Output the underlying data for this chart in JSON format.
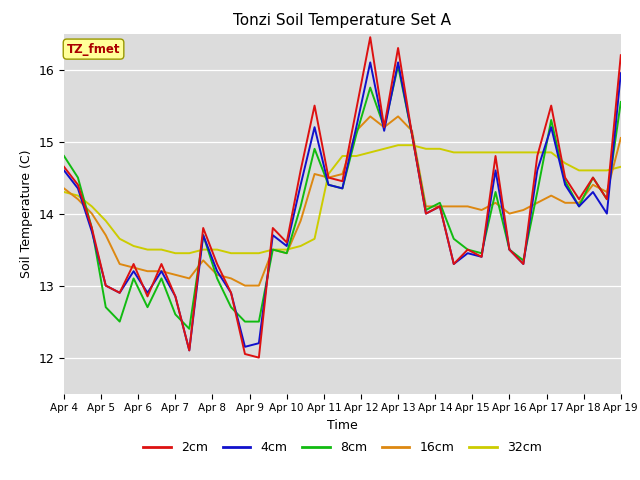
{
  "title": "Tonzi Soil Temperature Set A",
  "xlabel": "Time",
  "ylabel": "Soil Temperature (C)",
  "ylim": [
    11.5,
    16.5
  ],
  "xtick_labels": [
    "Apr 4",
    "Apr 5",
    "Apr 6",
    "Apr 7",
    "Apr 8",
    "Apr 9",
    "Apr 10",
    "Apr 11",
    "Apr 12",
    "Apr 13",
    "Apr 14",
    "Apr 15",
    "Apr 16",
    "Apr 17",
    "Apr 18",
    "Apr 19"
  ],
  "colors": {
    "2cm": "#dd1111",
    "4cm": "#1111cc",
    "8cm": "#11bb11",
    "16cm": "#dd8811",
    "32cm": "#cccc00"
  },
  "background_color": "#dcdcdc",
  "annotation_text": "TZ_fmet",
  "annotation_bg": "#ffff99",
  "annotation_fg": "#aa0000",
  "series": {
    "2cm": [
      14.65,
      14.4,
      13.8,
      13.0,
      12.9,
      13.3,
      12.85,
      13.3,
      12.85,
      12.1,
      13.8,
      13.3,
      12.9,
      12.05,
      12.0,
      13.8,
      13.6,
      14.6,
      15.5,
      14.5,
      14.45,
      15.45,
      16.45,
      15.2,
      16.3,
      15.1,
      14.0,
      14.1,
      13.3,
      13.5,
      13.4,
      14.8,
      13.5,
      13.3,
      14.8,
      15.5,
      14.5,
      14.2,
      14.5,
      14.2,
      16.2
    ],
    "4cm": [
      14.6,
      14.35,
      13.75,
      13.0,
      12.9,
      13.2,
      12.9,
      13.2,
      12.85,
      12.1,
      13.7,
      13.2,
      12.9,
      12.15,
      12.2,
      13.7,
      13.55,
      14.4,
      15.2,
      14.4,
      14.35,
      15.2,
      16.1,
      15.15,
      16.1,
      15.1,
      14.0,
      14.1,
      13.3,
      13.45,
      13.4,
      14.6,
      13.5,
      13.3,
      14.6,
      15.2,
      14.4,
      14.1,
      14.3,
      14.0,
      15.95
    ],
    "8cm": [
      14.8,
      14.5,
      13.8,
      12.7,
      12.5,
      13.1,
      12.7,
      13.1,
      12.6,
      12.4,
      13.7,
      13.1,
      12.7,
      12.5,
      12.5,
      13.5,
      13.45,
      14.1,
      14.9,
      14.4,
      14.35,
      15.1,
      15.75,
      15.2,
      16.05,
      15.1,
      14.05,
      14.15,
      13.65,
      13.5,
      13.45,
      14.3,
      13.5,
      13.35,
      14.3,
      15.3,
      14.45,
      14.1,
      14.5,
      14.2,
      15.55
    ],
    "16cm": [
      14.35,
      14.2,
      14.0,
      13.7,
      13.3,
      13.25,
      13.2,
      13.2,
      13.15,
      13.1,
      13.35,
      13.15,
      13.1,
      13.0,
      13.0,
      13.5,
      13.45,
      13.9,
      14.55,
      14.5,
      14.55,
      15.15,
      15.35,
      15.2,
      15.35,
      15.15,
      14.1,
      14.1,
      14.1,
      14.1,
      14.05,
      14.15,
      14.0,
      14.05,
      14.15,
      14.25,
      14.15,
      14.15,
      14.4,
      14.3,
      15.05
    ],
    "32cm": [
      14.3,
      14.25,
      14.1,
      13.9,
      13.65,
      13.55,
      13.5,
      13.5,
      13.45,
      13.45,
      13.5,
      13.5,
      13.45,
      13.45,
      13.45,
      13.5,
      13.5,
      13.55,
      13.65,
      14.55,
      14.8,
      14.8,
      14.85,
      14.9,
      14.95,
      14.95,
      14.9,
      14.9,
      14.85,
      14.85,
      14.85,
      14.85,
      14.85,
      14.85,
      14.85,
      14.85,
      14.7,
      14.6,
      14.6,
      14.6,
      14.65
    ]
  }
}
